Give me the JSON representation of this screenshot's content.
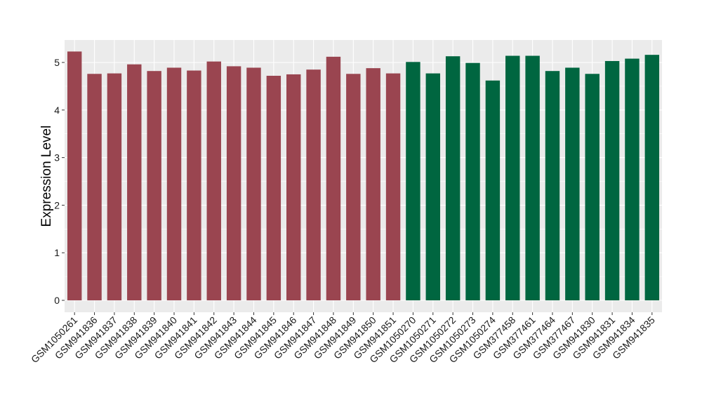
{
  "chart_data": {
    "type": "bar",
    "title": "",
    "xlabel": "",
    "ylabel": "Expression Level",
    "ylim": [
      0,
      5.45
    ],
    "yticks": [
      0,
      1,
      2,
      3,
      4,
      5
    ],
    "grid": true,
    "legend": "none",
    "colors": {
      "group_1": "#9A4550",
      "group_2": "#006640",
      "panel": "#EBEBEB",
      "gridline": "#FFFFFF"
    },
    "categories": [
      "GSM1050261",
      "GSM941836",
      "GSM941837",
      "GSM941838",
      "GSM941839",
      "GSM941840",
      "GSM941841",
      "GSM941842",
      "GSM941843",
      "GSM941844",
      "GSM941845",
      "GSM941846",
      "GSM941847",
      "GSM941848",
      "GSM941849",
      "GSM941850",
      "GSM941851",
      "GSM1050270",
      "GSM1050271",
      "GSM1050272",
      "GSM1050273",
      "GSM1050274",
      "GSM377458",
      "GSM377461",
      "GSM377464",
      "GSM377467",
      "GSM941830",
      "GSM941831",
      "GSM941834",
      "GSM941835"
    ],
    "values": [
      5.23,
      4.76,
      4.77,
      4.96,
      4.82,
      4.89,
      4.83,
      5.02,
      4.92,
      4.89,
      4.72,
      4.75,
      4.85,
      5.12,
      4.76,
      4.88,
      4.77,
      5.01,
      4.77,
      5.13,
      4.99,
      4.62,
      5.14,
      5.14,
      4.82,
      4.89,
      4.76,
      5.03,
      5.08,
      5.16
    ],
    "group": [
      1,
      1,
      1,
      1,
      1,
      1,
      1,
      1,
      1,
      1,
      1,
      1,
      1,
      1,
      1,
      1,
      1,
      2,
      2,
      2,
      2,
      2,
      2,
      2,
      2,
      2,
      2,
      2,
      2,
      2
    ]
  }
}
